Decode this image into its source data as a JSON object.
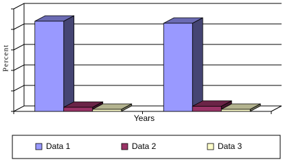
{
  "chart_data": {
    "type": "bar3d",
    "y_label": "Percent",
    "x_label": "Years",
    "categories": [
      null,
      null
    ],
    "series": [
      {
        "name": "Data 1",
        "color": "#9999ff",
        "values": [
          88,
          86
        ]
      },
      {
        "name": "Data 2",
        "color": "#993366",
        "values": [
          4,
          5
        ]
      },
      {
        "name": "Data 3",
        "color": "#ffffcc",
        "values": [
          2,
          2
        ]
      }
    ],
    "ylim": [
      0,
      100
    ],
    "yticks": [
      0,
      20,
      40,
      60,
      80,
      100
    ],
    "grid": true,
    "legend": "bottom"
  }
}
